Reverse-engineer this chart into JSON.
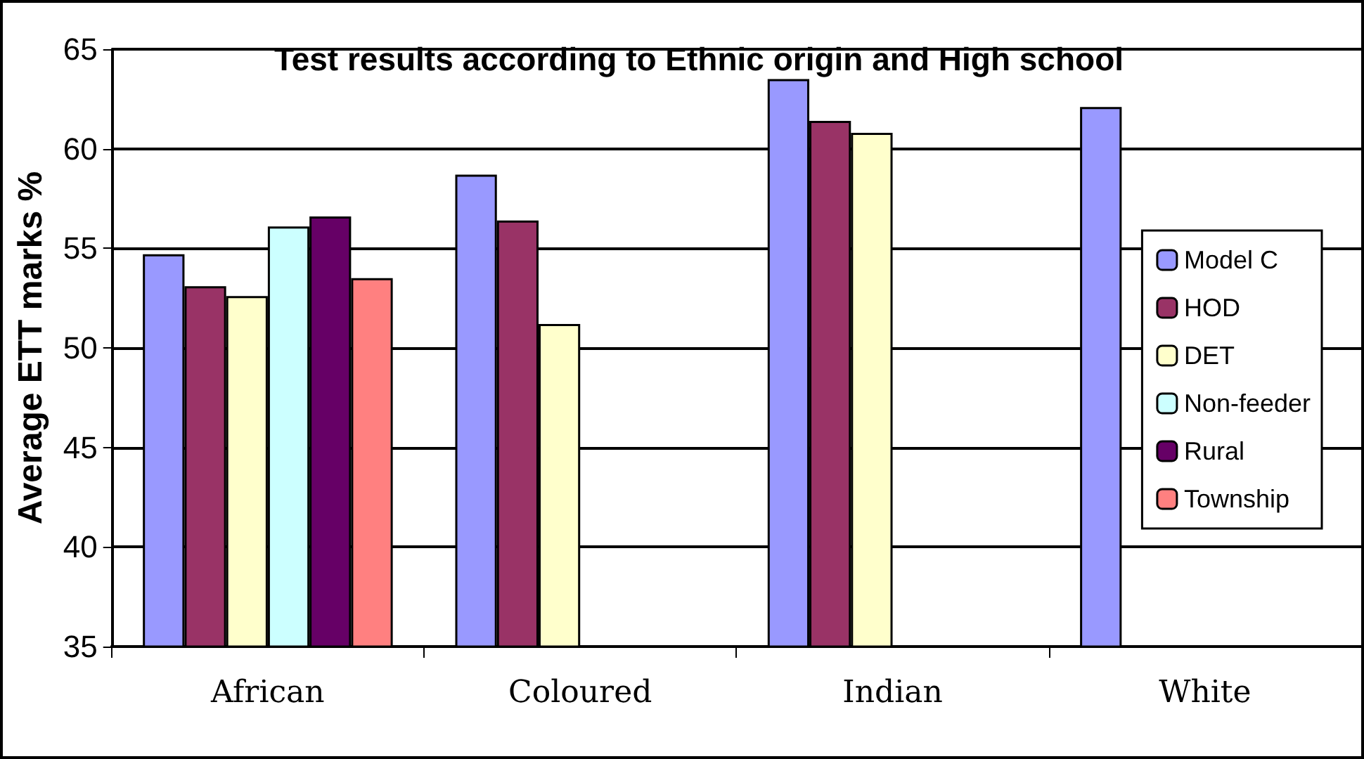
{
  "chart_data": {
    "type": "bar",
    "title": "Test results according to Ethnic origin and High school",
    "ylabel": "Average ETT marks %",
    "categories": [
      "African",
      "Coloured",
      "Indian",
      "White"
    ],
    "series": [
      {
        "name": "Model C",
        "color": "#9999ff",
        "values": [
          54.7,
          58.7,
          63.5,
          62.1
        ]
      },
      {
        "name": "HOD",
        "color": "#993366",
        "values": [
          53.1,
          56.4,
          61.4,
          null
        ]
      },
      {
        "name": "DET",
        "color": "#ffffcc",
        "values": [
          52.6,
          51.2,
          60.8,
          null
        ]
      },
      {
        "name": "Non-feeder",
        "color": "#ccffff",
        "values": [
          56.1,
          null,
          null,
          null
        ]
      },
      {
        "name": "Rural",
        "color": "#660066",
        "values": [
          56.6,
          null,
          null,
          null
        ]
      },
      {
        "name": "Township",
        "color": "#ff8080",
        "values": [
          53.5,
          null,
          null,
          null
        ]
      }
    ],
    "ylim": [
      35,
      65
    ],
    "yticks": [
      35,
      40,
      45,
      50,
      55,
      60,
      65
    ],
    "grid": "y",
    "legend": "right"
  }
}
